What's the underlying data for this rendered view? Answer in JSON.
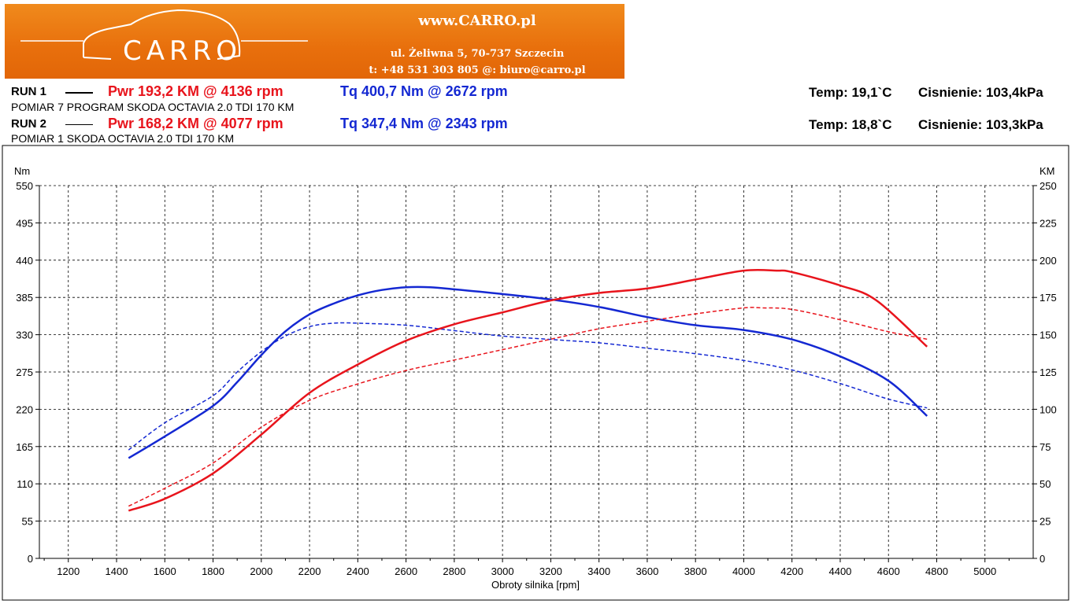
{
  "banner": {
    "logo": "CARRO",
    "site": "www.CARRO.pl",
    "address": "ul. Żeliwna 5, 70-737 Szczecin",
    "contact": "t: +48 531 303 805   @: biuro@carro.pl"
  },
  "runs": [
    {
      "label": "RUN 1",
      "line_style": "solid",
      "pwr": "Pwr  193,2 KM @ 4136 rpm",
      "tq": "Tq 400,7 Nm @ 2672 rpm",
      "desc": "POMIAR 7 PROGRAM SKODA OCTAVIA 2.0 TDI 170 KM",
      "temp": "Temp: 19,1`C",
      "pressure": "Cisnienie: 103,4kPa"
    },
    {
      "label": "RUN 2",
      "line_style": "dashed",
      "pwr": "Pwr  168,2 KM @ 4077 rpm",
      "tq": "Tq 347,4 Nm @ 2343 rpm",
      "desc": "POMIAR 1 SKODA OCTAVIA 2.0 TDI 170 KM",
      "temp": "Temp: 18,8`C",
      "pressure": "Cisnienie: 103,3kPa"
    }
  ],
  "chart_data": {
    "type": "line",
    "xlabel": "Obroty silnika [rpm]",
    "ylabel_left": "Nm",
    "ylabel_right": "KM",
    "xlim": [
      1080,
      5200
    ],
    "x_ticks": [
      1200,
      1400,
      1600,
      1800,
      2000,
      2200,
      2400,
      2600,
      2800,
      3000,
      3200,
      3400,
      3600,
      3800,
      4000,
      4200,
      4400,
      4600,
      4800,
      5000
    ],
    "ylim_left": [
      0,
      550
    ],
    "y_ticks_left": [
      0,
      55,
      110,
      165,
      220,
      275,
      330,
      385,
      440,
      495,
      550
    ],
    "ylim_right": [
      0,
      250
    ],
    "y_ticks_right": [
      0,
      25,
      50,
      75,
      100,
      125,
      150,
      175,
      200,
      225,
      250
    ],
    "grid": true,
    "colors": {
      "torque": "#1428d2",
      "power": "#e8141c"
    },
    "series": [
      {
        "name": "Tq",
        "run": "RUN 1",
        "axis": "left",
        "style": "solid",
        "x": [
          1450,
          1600,
          1800,
          1900,
          2000,
          2100,
          2200,
          2300,
          2400,
          2500,
          2600,
          2700,
          2800,
          3000,
          3200,
          3400,
          3600,
          3800,
          4000,
          4200,
          4400,
          4600,
          4760
        ],
        "y": [
          148,
          180,
          225,
          260,
          300,
          335,
          360,
          376,
          388,
          396,
          400,
          400,
          397,
          390,
          382,
          371,
          356,
          344,
          337,
          323,
          298,
          262,
          210
        ]
      },
      {
        "name": "Tq",
        "run": "RUN 2",
        "axis": "left",
        "style": "dashed",
        "x": [
          1450,
          1600,
          1800,
          1900,
          2000,
          2100,
          2200,
          2300,
          2400,
          2600,
          2800,
          3000,
          3200,
          3400,
          3600,
          3800,
          4000,
          4200,
          4400,
          4600,
          4760
        ],
        "y": [
          160,
          200,
          240,
          275,
          305,
          328,
          342,
          347,
          347,
          344,
          336,
          328,
          323,
          318,
          310,
          302,
          292,
          278,
          258,
          235,
          222
        ]
      },
      {
        "name": "Pwr",
        "run": "RUN 1",
        "axis": "right",
        "style": "solid",
        "x": [
          1450,
          1600,
          1800,
          2000,
          2200,
          2400,
          2600,
          2800,
          3000,
          3200,
          3400,
          3600,
          3800,
          4000,
          4136,
          4200,
          4400,
          4550,
          4760
        ],
        "y": [
          32,
          40,
          57,
          83,
          111,
          130,
          146,
          157,
          165,
          173,
          178,
          181,
          187,
          193,
          193,
          192,
          183,
          173,
          142
        ]
      },
      {
        "name": "Pwr",
        "run": "RUN 2",
        "axis": "right",
        "style": "dashed",
        "x": [
          1450,
          1600,
          1800,
          2000,
          2200,
          2400,
          2600,
          2800,
          3000,
          3200,
          3400,
          3600,
          3800,
          4000,
          4077,
          4200,
          4400,
          4600,
          4760
        ],
        "y": [
          35,
          47,
          64,
          88,
          106,
          117,
          126,
          133,
          140,
          147,
          154,
          159,
          164,
          168,
          168,
          167,
          160,
          152,
          147
        ]
      }
    ]
  }
}
